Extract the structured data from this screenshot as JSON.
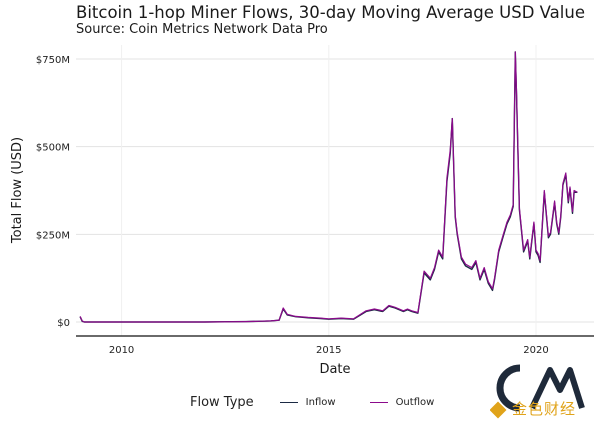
{
  "header": {
    "title": "Bitcoin 1-hop Miner Flows, 30-day Moving Average USD Value",
    "subtitle": "Source: Coin Metrics Network Data Pro"
  },
  "legend": {
    "title": "Flow Type",
    "items": [
      {
        "label": "Inflow",
        "color": "#1b2a44"
      },
      {
        "label": "Outflow",
        "color": "#8b0a8b"
      }
    ]
  },
  "watermark": {
    "text": "金色财经"
  },
  "chart_data": {
    "type": "line",
    "title": "Bitcoin 1-hop Miner Flows, 30-day Moving Average USD Value",
    "subtitle": "Source: Coin Metrics Network Data Pro",
    "xlabel": "Date",
    "ylabel": "Total Flow (USD)",
    "xlim": [
      2008.9,
      2021.4
    ],
    "ylim": [
      -40,
      790
    ],
    "x_ticks": [
      2010,
      2015,
      2020
    ],
    "x_tick_labels": [
      "2010",
      "2015",
      "2020"
    ],
    "y_ticks": [
      0,
      250,
      500,
      750
    ],
    "y_tick_labels": [
      "$0",
      "$250M",
      "$500M",
      "$750M"
    ],
    "y_unit": "USD millions",
    "grid": true,
    "legend_position": "bottom",
    "x": [
      2009.0,
      2009.05,
      2009.1,
      2010,
      2011,
      2012,
      2013,
      2013.3,
      2013.6,
      2013.8,
      2013.9,
      2014.0,
      2014.2,
      2014.5,
      2014.8,
      2015.0,
      2015.3,
      2015.6,
      2015.9,
      2016.1,
      2016.3,
      2016.45,
      2016.6,
      2016.8,
      2016.9,
      2017.0,
      2017.15,
      2017.3,
      2017.45,
      2017.55,
      2017.65,
      2017.75,
      2017.85,
      2017.93,
      2017.98,
      2018.05,
      2018.1,
      2018.2,
      2018.3,
      2018.45,
      2018.55,
      2018.65,
      2018.75,
      2018.85,
      2018.95,
      2019.0,
      2019.1,
      2019.2,
      2019.3,
      2019.38,
      2019.45,
      2019.5,
      2019.53,
      2019.56,
      2019.6,
      2019.7,
      2019.8,
      2019.85,
      2019.9,
      2019.95,
      2020.0,
      2020.05,
      2020.1,
      2020.2,
      2020.3,
      2020.35,
      2020.45,
      2020.5,
      2020.55,
      2020.6,
      2020.65,
      2020.72,
      2020.78,
      2020.82,
      2020.88,
      2020.92,
      2021.0
    ],
    "series": [
      {
        "name": "Inflow",
        "values": [
          15,
          2,
          0,
          0,
          0,
          0,
          1,
          2,
          3,
          5,
          37,
          20,
          15,
          12,
          10,
          8,
          10,
          8,
          30,
          35,
          30,
          45,
          40,
          30,
          35,
          30,
          25,
          140,
          120,
          150,
          200,
          180,
          400,
          480,
          580,
          300,
          250,
          180,
          160,
          150,
          170,
          120,
          150,
          110,
          90,
          120,
          200,
          240,
          280,
          300,
          330,
          770,
          650,
          500,
          320,
          200,
          230,
          180,
          230,
          280,
          200,
          190,
          170,
          370,
          240,
          250,
          340,
          280,
          250,
          300,
          390,
          420,
          340,
          380,
          310,
          370,
          370
        ]
      },
      {
        "name": "Outflow",
        "values": [
          16,
          3,
          0,
          0,
          0,
          0,
          1,
          2,
          3,
          5,
          40,
          22,
          16,
          13,
          11,
          9,
          11,
          9,
          32,
          37,
          32,
          47,
          42,
          32,
          37,
          32,
          27,
          145,
          125,
          155,
          205,
          185,
          410,
          490,
          580,
          305,
          255,
          185,
          165,
          155,
          175,
          125,
          155,
          115,
          95,
          125,
          205,
          245,
          285,
          305,
          335,
          770,
          660,
          510,
          325,
          205,
          235,
          185,
          235,
          285,
          205,
          195,
          175,
          375,
          245,
          255,
          345,
          285,
          255,
          305,
          395,
          425,
          345,
          385,
          315,
          375,
          370
        ]
      }
    ]
  }
}
